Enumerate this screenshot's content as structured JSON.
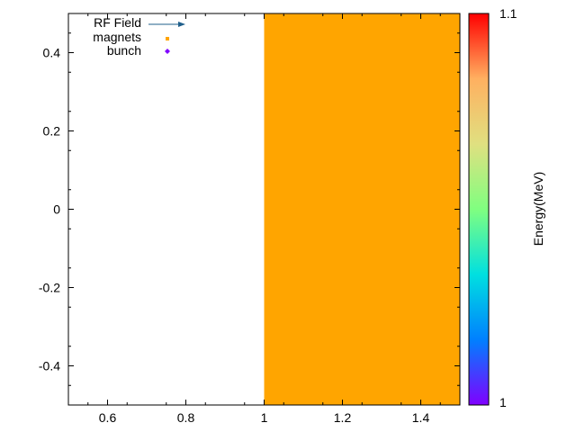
{
  "chart_data": {
    "type": "heatmap",
    "title": "",
    "xlabel": "",
    "ylabel": "",
    "xlim": [
      0.5,
      1.5
    ],
    "ylim": [
      -0.5,
      0.5
    ],
    "x_ticks": [
      0.6,
      0.8,
      1,
      1.2,
      1.4
    ],
    "x_tick_labels": [
      "0.6",
      "0.8",
      "1",
      "1.2",
      "1.4"
    ],
    "y_ticks": [
      0.4,
      0.2,
      0,
      -0.2,
      -0.4
    ],
    "y_tick_labels": [
      "0.4",
      "0.2",
      "0",
      "-0.2",
      "-0.4"
    ],
    "grid": false,
    "legend_position": "top-left",
    "series": [
      {
        "name": "RF Field",
        "style": "vectors",
        "color": "#1f5f8b",
        "points": []
      },
      {
        "name": "magnets",
        "style": "boxes",
        "color": "#ffa500",
        "regions": [
          {
            "x": [
              1.0,
              1.5
            ],
            "y": [
              -0.5,
              0.5
            ]
          }
        ]
      },
      {
        "name": "bunch",
        "style": "points",
        "color": "#8000ff",
        "points": []
      }
    ],
    "colorbar": {
      "label": "Energy(MeV)",
      "range": [
        1,
        1.1
      ],
      "tick_labels": [
        "1.1",
        "1"
      ],
      "palette": "rainbow",
      "colors": [
        "#8000ff",
        "#0080ff",
        "#00e0e0",
        "#80ff80",
        "#e0e080",
        "#ffb060",
        "#ff0000"
      ]
    }
  }
}
